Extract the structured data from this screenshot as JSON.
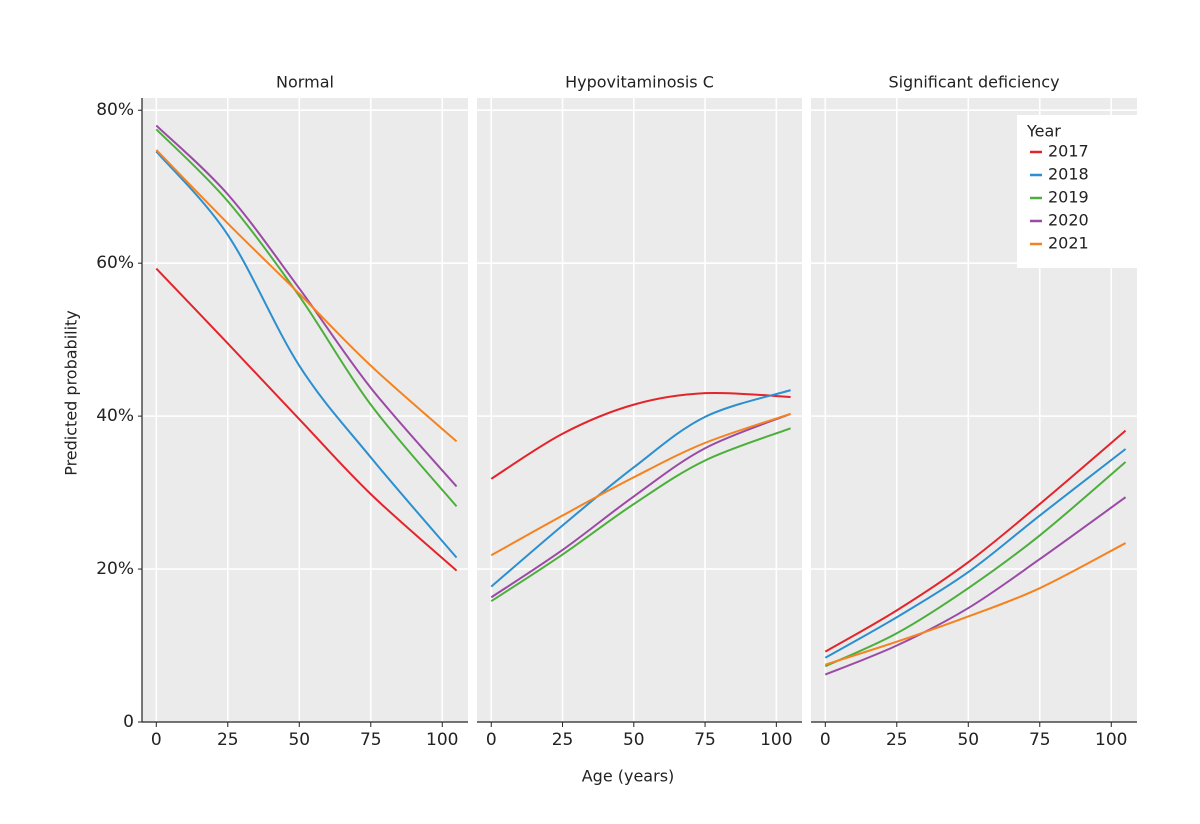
{
  "chart_data": [
    {
      "type": "line",
      "title": "Normal",
      "y_label": "Predicted probability",
      "x": [
        0,
        25,
        50,
        75,
        105
      ],
      "xlim": [
        -5,
        109
      ],
      "xticks": [
        0,
        25,
        50,
        75,
        100
      ],
      "ylim": [
        0,
        81.6
      ],
      "yticks": [
        0,
        {
          "value": 20,
          "label": "20%"
        },
        {
          "value": 40,
          "label": "40%"
        },
        {
          "value": 60,
          "label": "60%"
        },
        {
          "value": 80,
          "label": "80%"
        }
      ],
      "grid": true,
      "series": [
        {
          "color": "#e3242b",
          "values": [
            59.3,
            49.5,
            39.6,
            29.8,
            19.8
          ]
        },
        {
          "color": "#2b8fd0",
          "values": [
            74.6,
            63.7,
            46.6,
            34.6,
            21.5
          ]
        },
        {
          "color": "#4caf3c",
          "values": [
            77.5,
            68.1,
            55.7,
            41.5,
            28.2
          ]
        },
        {
          "color": "#9b4aa6",
          "values": [
            78.0,
            69.0,
            56.7,
            43.7,
            30.8
          ]
        },
        {
          "color": "#f5821f",
          "values": [
            74.8,
            65.2,
            56.0,
            46.6,
            36.7
          ]
        }
      ]
    },
    {
      "type": "line",
      "title": "Hypovitaminosis C",
      "x_label": "Age (years)",
      "x": [
        0,
        25,
        50,
        75,
        105
      ],
      "xlim": [
        -5,
        109
      ],
      "xticks": [
        0,
        25,
        50,
        75,
        100
      ],
      "ylim": [
        0,
        81.6
      ],
      "yticks": [
        0,
        20,
        40,
        60,
        80
      ],
      "grid": true,
      "series": [
        {
          "color": "#e3242b",
          "values": [
            31.8,
            37.7,
            41.5,
            43.0,
            42.5
          ]
        },
        {
          "color": "#2b8fd0",
          "values": [
            17.7,
            25.7,
            33.3,
            39.9,
            43.4
          ]
        },
        {
          "color": "#4caf3c",
          "values": [
            15.8,
            21.9,
            28.5,
            34.2,
            38.4
          ]
        },
        {
          "color": "#9b4aa6",
          "values": [
            16.3,
            22.5,
            29.5,
            35.8,
            40.3
          ]
        },
        {
          "color": "#f5821f",
          "values": [
            21.8,
            27.0,
            32.0,
            36.5,
            40.3
          ]
        }
      ]
    },
    {
      "type": "line",
      "title": "Significant deficiency",
      "x": [
        0,
        25,
        50,
        75,
        105
      ],
      "xlim": [
        -5,
        109
      ],
      "xticks": [
        0,
        25,
        50,
        75,
        100
      ],
      "ylim": [
        0,
        81.6
      ],
      "yticks": [
        0,
        20,
        40,
        60,
        80
      ],
      "grid": true,
      "legend_title": "Year",
      "legend": "top-right",
      "series": [
        {
          "name": "2017",
          "color": "#e3242b",
          "values": [
            9.2,
            14.6,
            20.9,
            28.5,
            38.1
          ]
        },
        {
          "name": "2018",
          "color": "#2b8fd0",
          "values": [
            8.4,
            13.7,
            19.6,
            27.0,
            35.7
          ]
        },
        {
          "name": "2019",
          "color": "#4caf3c",
          "values": [
            7.3,
            11.6,
            17.5,
            24.4,
            34.0
          ]
        },
        {
          "name": "2020",
          "color": "#9b4aa6",
          "values": [
            6.2,
            10.0,
            14.9,
            21.3,
            29.4
          ]
        },
        {
          "name": "2021",
          "color": "#f5821f",
          "values": [
            7.5,
            10.5,
            13.8,
            17.5,
            23.4
          ]
        }
      ]
    }
  ]
}
